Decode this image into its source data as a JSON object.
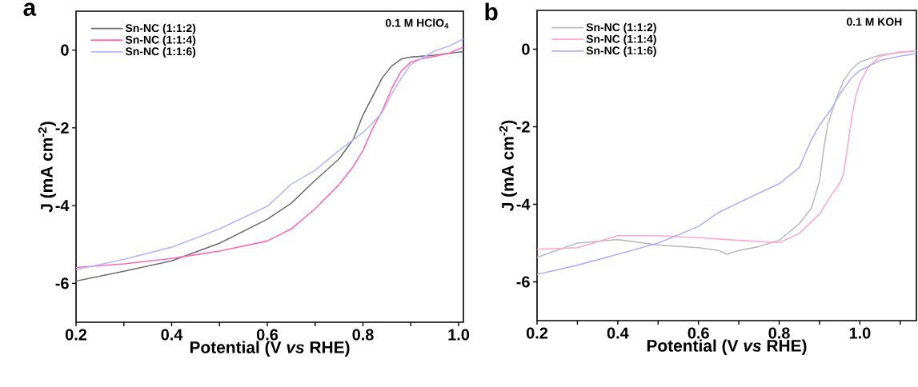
{
  "chart_data": [
    {
      "type": "line",
      "title": "a",
      "xlabel": "Potential (V *vs* RHE)",
      "ylabel": "J (mA cm$^{-2}$)",
      "annotations": [
        "0.1 M HClO$_{4}$"
      ],
      "xlim": [
        0.2,
        1.01
      ],
      "ylim": [
        -7,
        1
      ],
      "xticks": [
        0.2,
        {
          "value": 0.3,
          "label": null
        },
        0.4,
        {
          "value": 0.5,
          "label": null
        },
        0.6,
        {
          "value": 0.7,
          "label": null
        },
        0.8,
        {
          "value": 0.9,
          "label": null
        },
        {
          "value": 1.0,
          "label": "1.0"
        }
      ],
      "yticks": [
        -6,
        -4,
        -2,
        0
      ],
      "legend": "top left",
      "grid": false,
      "series": [
        {
          "name": "Sn-NC (1:1:2)",
          "color": "#707070",
          "x": [
            0.2,
            0.3,
            0.4,
            0.5,
            0.6,
            0.65,
            0.7,
            0.75,
            0.78,
            0.8,
            0.82,
            0.84,
            0.86,
            0.88,
            0.9,
            0.95,
            1.01
          ],
          "values": [
            -5.94,
            -5.69,
            -5.42,
            -4.97,
            -4.35,
            -3.94,
            -3.35,
            -2.8,
            -2.29,
            -1.67,
            -1.2,
            -0.72,
            -0.41,
            -0.23,
            -0.18,
            -0.13,
            -0.04
          ]
        },
        {
          "name": "Sn-NC (1:1:4)",
          "color": "#ff6ab4",
          "x": [
            0.2,
            0.3,
            0.4,
            0.5,
            0.6,
            0.65,
            0.7,
            0.75,
            0.78,
            0.8,
            0.82,
            0.84,
            0.86,
            0.88,
            0.9,
            0.92,
            0.95,
            0.98,
            1.01
          ],
          "values": [
            -5.59,
            -5.5,
            -5.36,
            -5.17,
            -4.91,
            -4.6,
            -4.08,
            -3.46,
            -2.99,
            -2.58,
            -2.02,
            -1.57,
            -0.99,
            -0.54,
            -0.31,
            -0.23,
            -0.16,
            -0.08,
            0.08
          ]
        },
        {
          "name": "Sn-NC (1:1:6)",
          "color": "#b4b8ff",
          "x": [
            0.2,
            0.3,
            0.4,
            0.5,
            0.6,
            0.65,
            0.7,
            0.75,
            0.8,
            0.82,
            0.84,
            0.86,
            0.88,
            0.9,
            0.92,
            0.95,
            0.98,
            1.01
          ],
          "values": [
            -5.65,
            -5.38,
            -5.07,
            -4.6,
            -4.02,
            -3.45,
            -3.09,
            -2.58,
            -2.12,
            -1.88,
            -1.61,
            -1.13,
            -0.72,
            -0.37,
            -0.23,
            -0.02,
            0.1,
            0.29
          ]
        }
      ]
    },
    {
      "type": "line",
      "title": "b",
      "xlabel": "Potential (V *vs* RHE)",
      "ylabel": "J (mA cm$^{-2}$)",
      "annotations": [
        "0.1 M KOH"
      ],
      "xlim": [
        0.2,
        1.14
      ],
      "ylim": [
        -7,
        1
      ],
      "xticks": [
        0.2,
        {
          "value": 0.3,
          "label": null
        },
        0.4,
        {
          "value": 0.5,
          "label": null
        },
        0.6,
        {
          "value": 0.7,
          "label": null
        },
        0.8,
        {
          "value": 0.9,
          "label": null
        },
        {
          "value": 1.0,
          "label": "1.0"
        },
        {
          "value": 1.1,
          "label": null
        }
      ],
      "yticks": [
        -6,
        -4,
        -2,
        0
      ],
      "legend": "top left",
      "grid": false,
      "series": [
        {
          "name": "Sn-NC (1:1:2)",
          "color": "#bdbdbd",
          "x": [
            0.2,
            0.3,
            0.4,
            0.5,
            0.6,
            0.65,
            0.67,
            0.7,
            0.75,
            0.8,
            0.85,
            0.88,
            0.9,
            0.91,
            0.92,
            0.94,
            0.96,
            0.98,
            1.0,
            1.05,
            1.14
          ],
          "values": [
            -5.37,
            -5.0,
            -4.91,
            -5.05,
            -5.12,
            -5.19,
            -5.29,
            -5.19,
            -5.09,
            -4.93,
            -4.5,
            -4.1,
            -3.4,
            -2.6,
            -1.96,
            -1.31,
            -0.8,
            -0.51,
            -0.33,
            -0.15,
            -0.04
          ]
        },
        {
          "name": "Sn-NC (1:1:4)",
          "color": "#ffa8d0",
          "x": [
            0.2,
            0.3,
            0.4,
            0.5,
            0.6,
            0.7,
            0.8,
            0.85,
            0.9,
            0.93,
            0.95,
            0.96,
            0.97,
            0.98,
            0.99,
            1.0,
            1.02,
            1.05,
            1.1,
            1.14
          ],
          "values": [
            -5.16,
            -5.12,
            -4.81,
            -4.81,
            -4.86,
            -4.93,
            -4.99,
            -4.75,
            -4.25,
            -3.75,
            -3.46,
            -3.2,
            -2.47,
            -1.75,
            -1.2,
            -0.87,
            -0.47,
            -0.18,
            -0.07,
            -0.04
          ]
        },
        {
          "name": "Sn-NC (1:1:6)",
          "color": "#b0b0ff",
          "x": [
            0.2,
            0.3,
            0.4,
            0.5,
            0.55,
            0.6,
            0.65,
            0.7,
            0.75,
            0.8,
            0.85,
            0.88,
            0.9,
            0.93,
            0.95,
            0.98,
            1.0,
            1.05,
            1.1,
            1.14
          ],
          "values": [
            -5.81,
            -5.57,
            -5.29,
            -5.0,
            -4.79,
            -4.57,
            -4.21,
            -3.96,
            -3.71,
            -3.47,
            -3.05,
            -2.33,
            -1.96,
            -1.53,
            -1.16,
            -0.73,
            -0.55,
            -0.29,
            -0.18,
            -0.11
          ]
        }
      ]
    }
  ]
}
